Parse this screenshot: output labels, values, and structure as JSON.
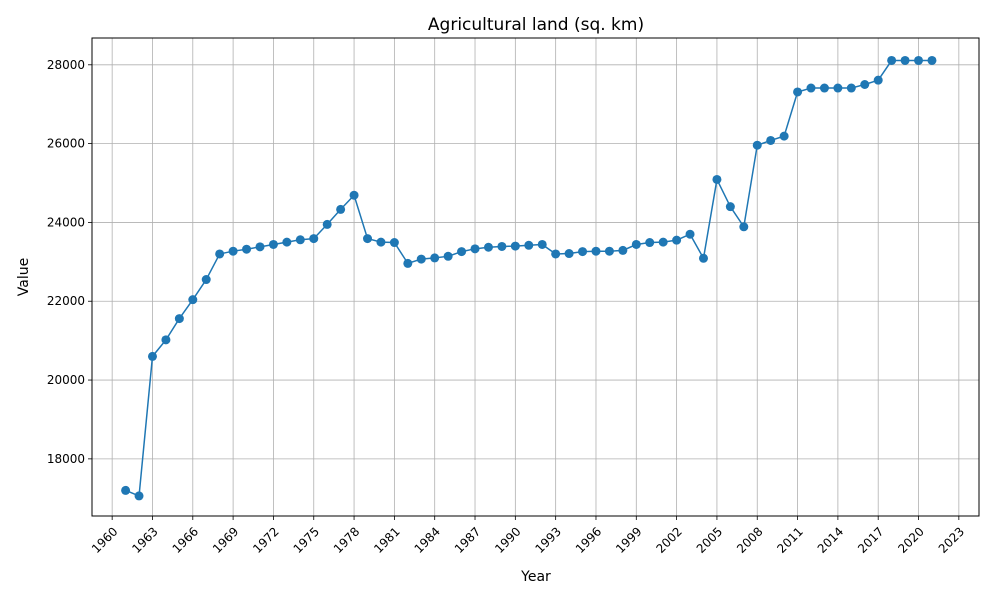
{
  "chart_data": {
    "type": "line",
    "title": "Agricultural land (sq. km)",
    "xlabel": "Year",
    "ylabel": "Value",
    "xlim": [
      1958.5,
      2024.5
    ],
    "ylim": [
      16550,
      28680
    ],
    "grid": true,
    "marker": "circle",
    "x_ticks": [
      1960,
      1963,
      1966,
      1969,
      1972,
      1975,
      1978,
      1981,
      1984,
      1987,
      1990,
      1993,
      1996,
      1999,
      2002,
      2005,
      2008,
      2011,
      2014,
      2017,
      2020,
      2023
    ],
    "y_ticks": [
      18000,
      20000,
      22000,
      24000,
      26000,
      28000
    ],
    "series": [
      {
        "color": "#1f77b4",
        "x": [
          1961,
          1962,
          1963,
          1964,
          1965,
          1966,
          1967,
          1968,
          1969,
          1970,
          1971,
          1972,
          1973,
          1974,
          1975,
          1976,
          1977,
          1978,
          1979,
          1980,
          1981,
          1982,
          1983,
          1984,
          1985,
          1986,
          1987,
          1988,
          1989,
          1990,
          1991,
          1992,
          1993,
          1994,
          1995,
          1996,
          1997,
          1998,
          1999,
          2000,
          2001,
          2002,
          2003,
          2004,
          2005,
          2006,
          2007,
          2008,
          2009,
          2010,
          2011,
          2012,
          2013,
          2014,
          2015,
          2016,
          2017,
          2018,
          2019,
          2020,
          2021
        ],
        "values": [
          17200,
          17060,
          20600,
          21020,
          21560,
          22040,
          22550,
          23200,
          23270,
          23320,
          23380,
          23440,
          23500,
          23560,
          23590,
          23950,
          24330,
          24690,
          23590,
          23500,
          23490,
          22960,
          23070,
          23100,
          23140,
          23260,
          23330,
          23370,
          23390,
          23400,
          23420,
          23440,
          23200,
          23210,
          23260,
          23270,
          23270,
          23290,
          23440,
          23490,
          23500,
          23550,
          23700,
          23090,
          25090,
          24400,
          23890,
          25960,
          26080,
          26190,
          27310,
          27410,
          27410,
          27410,
          27410,
          27500,
          27610,
          28110,
          28110,
          28110,
          28110
        ]
      }
    ]
  }
}
